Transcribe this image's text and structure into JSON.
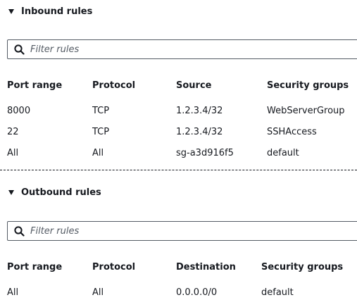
{
  "inbound": {
    "title": "Inbound rules",
    "filter_placeholder": "Filter rules",
    "columns": [
      "Port range",
      "Protocol",
      "Source",
      "Security groups"
    ],
    "rows": [
      [
        "8000",
        "TCP",
        "1.2.3.4/32",
        "WebServerGroup"
      ],
      [
        "22",
        "TCP",
        "1.2.3.4/32",
        "SSHAccess"
      ],
      [
        "All",
        "All",
        "sg-a3d916f5",
        "default"
      ]
    ]
  },
  "outbound": {
    "title": "Outbound rules",
    "filter_placeholder": "Filter rules",
    "columns": [
      "Port range",
      "Protocol",
      "Destination",
      "Security groups"
    ],
    "rows": [
      [
        "All",
        "All",
        "0.0.0.0/0",
        "default"
      ]
    ]
  }
}
